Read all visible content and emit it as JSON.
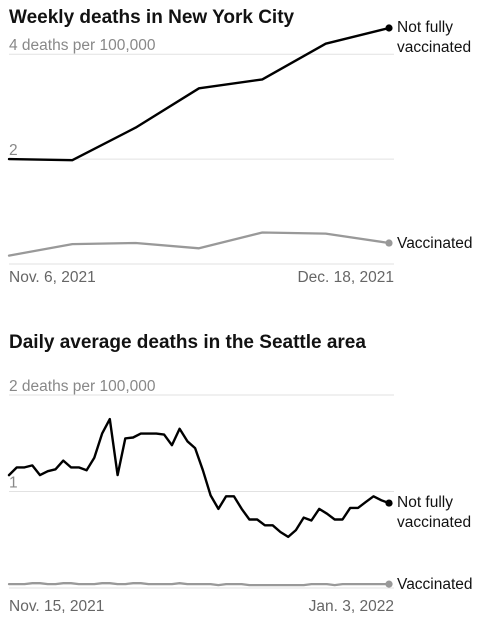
{
  "chart_data": [
    {
      "type": "line",
      "title": "Weekly deaths in New York City",
      "ylabel": "4 deaths per 100,000",
      "yticks": [
        {
          "value": 2,
          "label": "2"
        },
        {
          "value": 4,
          "label": "4 deaths per 100,000"
        }
      ],
      "ylim": [
        0,
        4.5
      ],
      "xtick_labels": [
        "Nov. 6, 2021",
        "Dec. 18, 2021"
      ],
      "x": [
        "2021-11-06",
        "2021-11-13",
        "2021-11-20",
        "2021-11-27",
        "2021-12-04",
        "2021-12-11",
        "2021-12-18"
      ],
      "series": [
        {
          "name": "Not fully vaccinated",
          "label_lines": [
            "Not fully",
            "vaccinated"
          ],
          "color": "#000000",
          "values": [
            2.0,
            1.98,
            2.6,
            3.35,
            3.52,
            4.2,
            4.5
          ]
        },
        {
          "name": "Vaccinated",
          "label_lines": [
            "Vaccinated"
          ],
          "color": "#999999",
          "values": [
            0.16,
            0.38,
            0.4,
            0.3,
            0.6,
            0.58,
            0.4
          ]
        }
      ]
    },
    {
      "type": "line",
      "title": "Daily average deaths in the Seattle area",
      "ylabel": "2 deaths per 100,000",
      "yticks": [
        {
          "value": 1,
          "label": "1"
        },
        {
          "value": 2,
          "label": "2 deaths per 100,000"
        }
      ],
      "ylim": [
        0,
        2
      ],
      "xtick_labels": [
        "Nov. 15, 2021",
        "Jan. 3, 2022"
      ],
      "x_start": "2021-11-15",
      "x_end": "2022-01-03",
      "series": [
        {
          "name": "Not fully vaccinated",
          "label_lines": [
            "Not fully",
            "vaccinated"
          ],
          "color": "#000000",
          "values": [
            1.17,
            1.25,
            1.25,
            1.27,
            1.17,
            1.21,
            1.23,
            1.32,
            1.25,
            1.25,
            1.22,
            1.35,
            1.6,
            1.75,
            1.17,
            1.55,
            1.56,
            1.6,
            1.6,
            1.6,
            1.59,
            1.48,
            1.65,
            1.52,
            1.45,
            1.22,
            0.96,
            0.82,
            0.95,
            0.95,
            0.82,
            0.71,
            0.71,
            0.65,
            0.65,
            0.58,
            0.53,
            0.6,
            0.73,
            0.7,
            0.82,
            0.77,
            0.71,
            0.71,
            0.83,
            0.83,
            0.89,
            0.95,
            0.91,
            0.88
          ]
        },
        {
          "name": "Vaccinated",
          "label_lines": [
            "Vaccinated"
          ],
          "color": "#999999",
          "values": [
            0.04,
            0.04,
            0.04,
            0.05,
            0.05,
            0.04,
            0.04,
            0.05,
            0.05,
            0.04,
            0.04,
            0.04,
            0.05,
            0.05,
            0.04,
            0.04,
            0.05,
            0.05,
            0.04,
            0.04,
            0.04,
            0.04,
            0.05,
            0.04,
            0.04,
            0.04,
            0.04,
            0.03,
            0.04,
            0.04,
            0.04,
            0.03,
            0.03,
            0.03,
            0.03,
            0.03,
            0.03,
            0.03,
            0.03,
            0.04,
            0.04,
            0.04,
            0.03,
            0.04,
            0.04,
            0.04,
            0.04,
            0.04,
            0.04,
            0.04
          ]
        }
      ]
    }
  ]
}
